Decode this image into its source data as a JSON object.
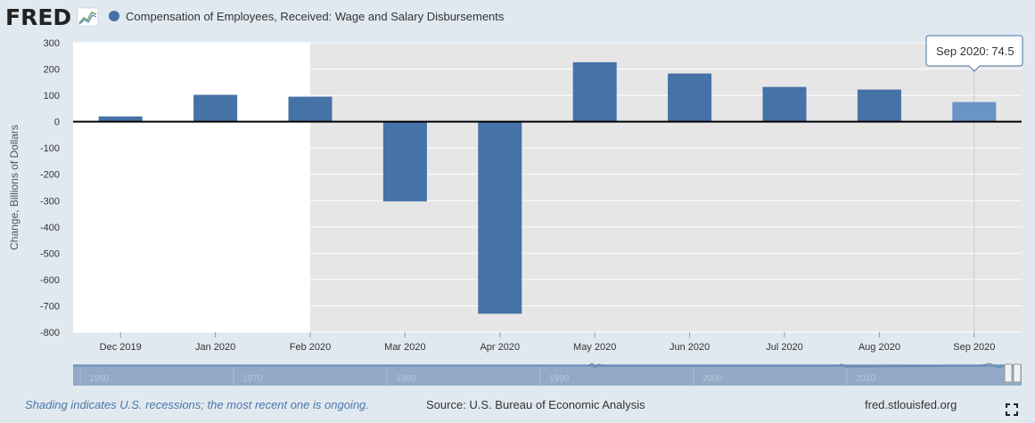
{
  "brand": {
    "logo_text": "FRED"
  },
  "chart_data": {
    "type": "bar",
    "series": [
      {
        "name": "Compensation of Employees, Received: Wage and Salary Disbursements",
        "color": "#4572a7",
        "values": [
          20,
          102,
          95,
          -303,
          -730,
          226,
          183,
          132,
          122,
          74.5
        ]
      }
    ],
    "categories": [
      "Dec 2019",
      "Jan 2020",
      "Feb 2020",
      "Mar 2020",
      "Apr 2020",
      "May 2020",
      "Jun 2020",
      "Jul 2020",
      "Aug 2020",
      "Sep 2020"
    ],
    "ylabel": "Change, Billions of Dollars",
    "ylim": [
      -800,
      300
    ],
    "yticks": [
      "300",
      "200",
      "100",
      "0",
      "-100",
      "-200",
      "-300",
      "-400",
      "-500",
      "-600",
      "-700",
      "-800"
    ],
    "recession_start": "Feb 2020",
    "recession_color": "#e6e6e6",
    "grid": true,
    "tooltip": {
      "label": "Sep 2020:",
      "value": "74.5"
    },
    "navigator": {
      "years": [
        "1960",
        "1970",
        "1980",
        "1990",
        "2000",
        "2010"
      ]
    }
  },
  "footer": {
    "recession_note": "Shading indicates U.S. recessions; the most recent one is ongoing.",
    "source": "Source: U.S. Bureau of Economic Analysis",
    "url": "fred.stlouisfed.org"
  }
}
